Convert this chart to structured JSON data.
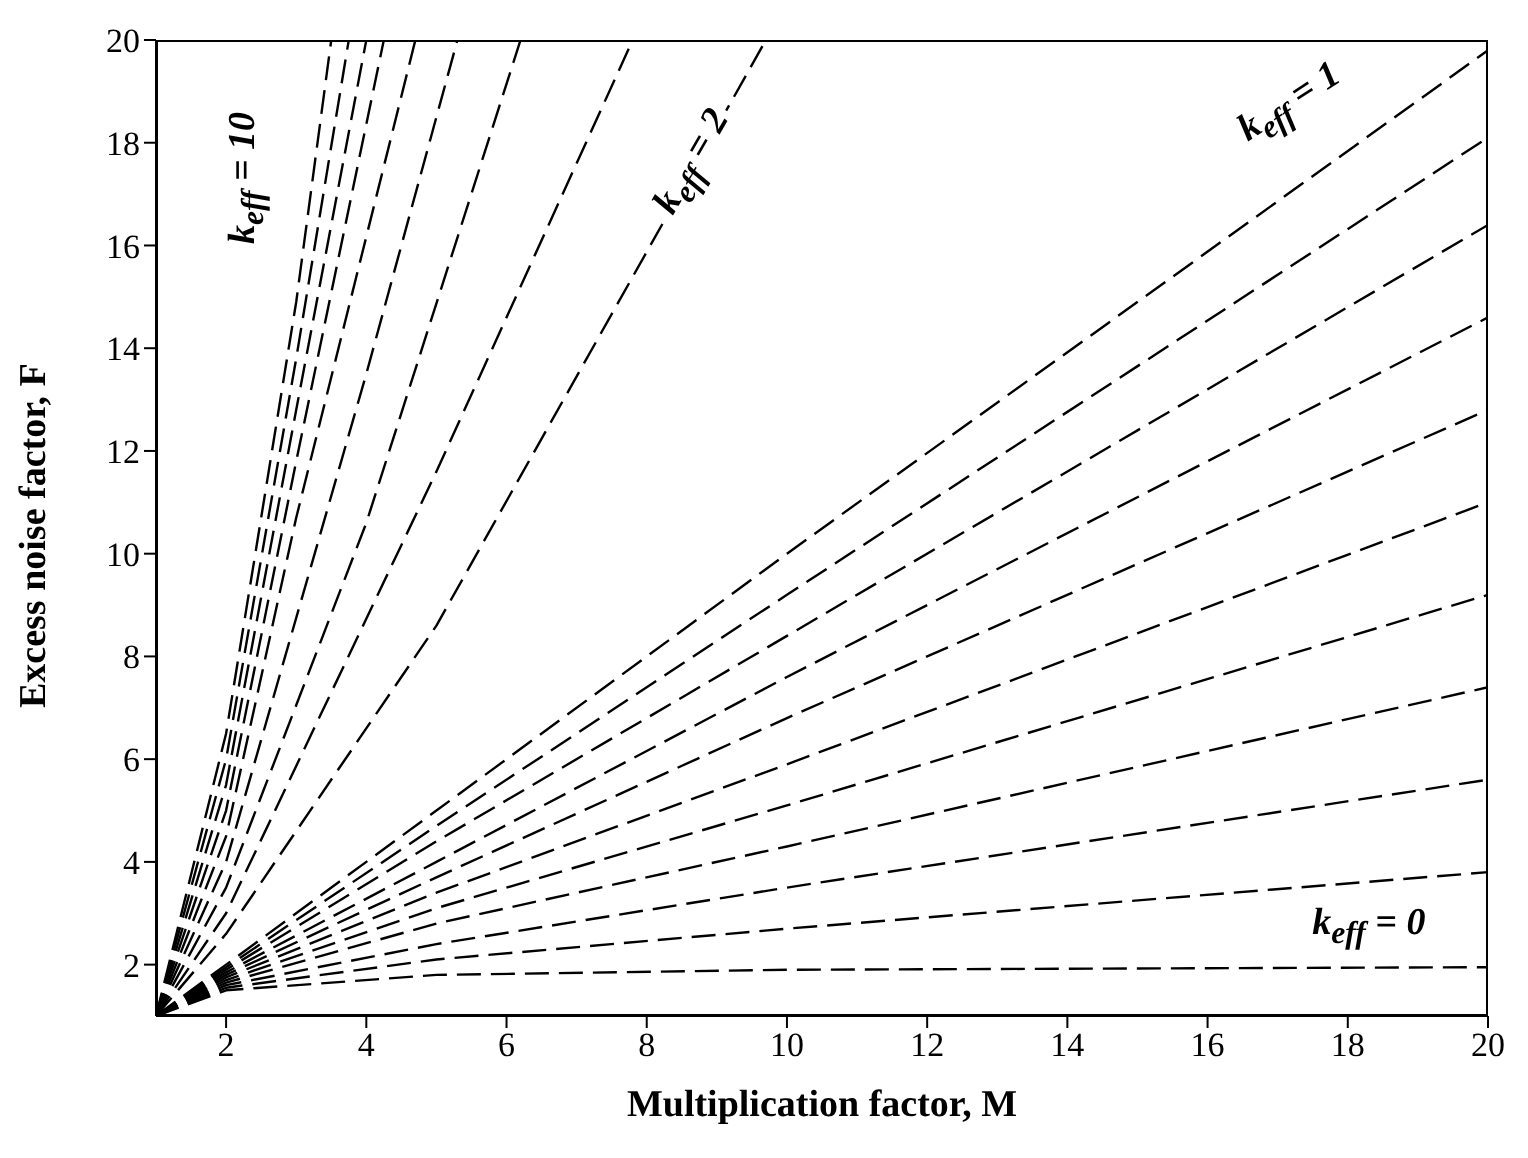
{
  "chart_data": {
    "type": "line",
    "xlabel": "Multiplication factor, M",
    "ylabel": "Excess noise factor, F",
    "xlim": [
      1,
      20
    ],
    "ylim": [
      1,
      20
    ],
    "xticks": [
      2,
      4,
      6,
      8,
      10,
      12,
      14,
      16,
      18,
      20
    ],
    "yticks": [
      2,
      4,
      6,
      8,
      10,
      12,
      14,
      16,
      18,
      20
    ],
    "grid": false,
    "marker": "none",
    "line_style": "dashed",
    "series": [
      {
        "color": "#000000",
        "x": [
          1,
          2,
          5,
          10,
          20
        ],
        "values": [
          1,
          1.5,
          1.8,
          1.9,
          1.95
        ]
      },
      {
        "color": "#000000",
        "x": [
          1,
          2,
          5,
          10,
          20
        ],
        "values": [
          1,
          1.55,
          2.1,
          2.7,
          3.8
        ]
      },
      {
        "color": "#000000",
        "x": [
          1,
          2,
          5,
          10,
          20
        ],
        "values": [
          1,
          1.6,
          2.4,
          3.5,
          5.6
        ]
      },
      {
        "color": "#000000",
        "x": [
          1,
          2,
          5,
          10,
          20
        ],
        "values": [
          1,
          1.65,
          2.8,
          4.3,
          7.4
        ]
      },
      {
        "color": "#000000",
        "x": [
          1,
          2,
          5,
          10,
          20
        ],
        "values": [
          1,
          1.7,
          3.1,
          5.1,
          9.2
        ]
      },
      {
        "color": "#000000",
        "x": [
          1,
          2,
          5,
          10,
          20
        ],
        "values": [
          1,
          1.75,
          3.4,
          5.9,
          11
        ]
      },
      {
        "color": "#000000",
        "x": [
          1,
          2,
          5,
          10,
          20
        ],
        "values": [
          1,
          1.8,
          3.7,
          6.8,
          12.8
        ]
      },
      {
        "color": "#000000",
        "x": [
          1,
          2,
          5,
          10,
          20
        ],
        "values": [
          1,
          1.85,
          4,
          7.6,
          14.6
        ]
      },
      {
        "color": "#000000",
        "x": [
          1,
          2,
          5,
          10,
          20
        ],
        "values": [
          1,
          1.9,
          4.4,
          8.4,
          16.4
        ]
      },
      {
        "color": "#000000",
        "x": [
          1,
          2,
          5,
          10,
          20
        ],
        "values": [
          1,
          1.95,
          4.7,
          9.2,
          18.1
        ]
      },
      {
        "color": "#000000",
        "x": [
          1,
          2,
          5,
          10,
          20
        ],
        "values": [
          1,
          2,
          5,
          10,
          19.8
        ]
      },
      {
        "color": "#000000",
        "x": [
          1,
          2,
          5,
          9.7
        ],
        "values": [
          1,
          2.6,
          8.6,
          20
        ]
      },
      {
        "color": "#000000",
        "x": [
          1,
          2,
          5,
          7.8
        ],
        "values": [
          1,
          3,
          11.6,
          20
        ]
      },
      {
        "color": "#000000",
        "x": [
          1,
          2,
          4,
          6.2
        ],
        "values": [
          1,
          3.5,
          10.6,
          20
        ]
      },
      {
        "color": "#000000",
        "x": [
          1,
          2,
          4,
          5.3
        ],
        "values": [
          1,
          4,
          13.5,
          20
        ]
      },
      {
        "color": "#000000",
        "x": [
          1,
          2,
          3,
          4.7
        ],
        "values": [
          1,
          4.5,
          10.7,
          20
        ]
      },
      {
        "color": "#000000",
        "x": [
          1,
          2,
          3,
          4.25
        ],
        "values": [
          1,
          5,
          11.8,
          20
        ]
      },
      {
        "color": "#000000",
        "x": [
          1,
          2,
          3,
          4
        ],
        "values": [
          1,
          5.5,
          12.8,
          20
        ]
      },
      {
        "color": "#000000",
        "x": [
          1,
          2,
          3,
          3.75
        ],
        "values": [
          1,
          6,
          13.8,
          20
        ]
      },
      {
        "color": "#000000",
        "x": [
          1,
          2,
          3,
          3.5
        ],
        "values": [
          1,
          6.5,
          14.9,
          20
        ]
      }
    ],
    "annotations": [
      "k$_{eff}$ = 10",
      "k$_{eff}$ = 2",
      "k$_{eff}$ = 1",
      "k$_{eff}$ = 0"
    ]
  }
}
